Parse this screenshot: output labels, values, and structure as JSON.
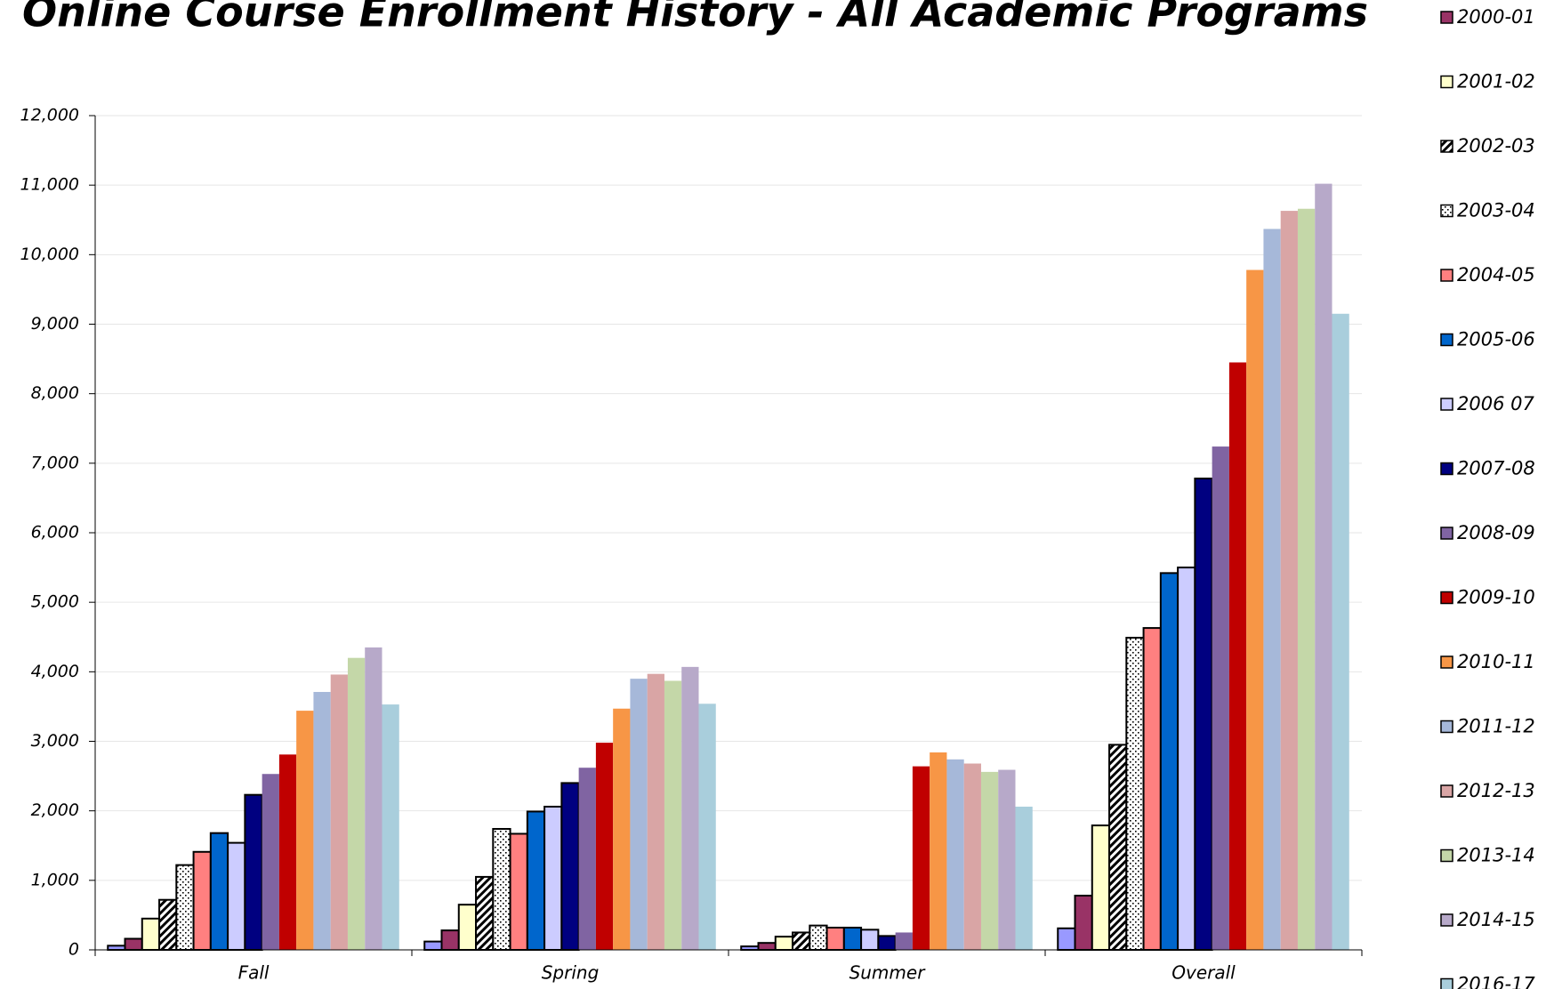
{
  "chart_data": {
    "type": "bar",
    "title": "Online Course Enrollment History - All Academic Programs",
    "categories": [
      "Fall",
      "Spring",
      "Summer",
      "Overall"
    ],
    "ylim": [
      0,
      12000
    ],
    "yticks": [
      0,
      {
        "value": 1000,
        "label": "1,000"
      },
      {
        "value": 2000,
        "label": "2,000"
      },
      {
        "value": 3000,
        "label": "3,000"
      },
      {
        "value": 4000,
        "label": "4,000"
      },
      {
        "value": 5000,
        "label": "5,000"
      },
      {
        "value": 6000,
        "label": "6,000"
      },
      {
        "value": 7000,
        "label": "7,000"
      },
      {
        "value": 8000,
        "label": "8,000"
      },
      {
        "value": 9000,
        "label": "9,000"
      },
      {
        "value": 10000,
        "label": "10,000"
      },
      {
        "value": 11000,
        "label": "11,000"
      },
      {
        "value": 12000,
        "label": "12,000"
      }
    ],
    "grid": true,
    "series": [
      {
        "name": null,
        "color": "#9999ff",
        "border": "#000000",
        "values": [
          60,
          120,
          50,
          310
        ]
      },
      {
        "name": "2000-01",
        "color": "#993366",
        "border": "#000000",
        "values": [
          160,
          280,
          100,
          780
        ]
      },
      {
        "name": "2001-02",
        "color": "#ffffcc",
        "border": "#000000",
        "values": [
          450,
          650,
          190,
          1790
        ]
      },
      {
        "name": "2002-03",
        "color": "#ffffff",
        "pattern": "hatch",
        "border": "#000000",
        "values": [
          720,
          1050,
          250,
          2950
        ]
      },
      {
        "name": "2003-04",
        "color": "#ffffff",
        "pattern": "dots",
        "border": "#000000",
        "values": [
          1220,
          1740,
          350,
          4490
        ]
      },
      {
        "name": "2004-05",
        "color": "#ff8080",
        "border": "#000000",
        "values": [
          1410,
          1670,
          320,
          4630
        ]
      },
      {
        "name": "2005-06",
        "color": "#0066cc",
        "border": "#000000",
        "values": [
          1680,
          1990,
          320,
          5420
        ]
      },
      {
        "name": "2006 07",
        "color": "#ccccff",
        "border": "#000000",
        "values": [
          1540,
          2060,
          290,
          5500
        ]
      },
      {
        "name": "2007-08",
        "color": "#000080",
        "border": "#000000",
        "values": [
          2230,
          2400,
          200,
          6780
        ]
      },
      {
        "name": "2008-09",
        "color": "#8064a2",
        "values": [
          2530,
          2620,
          250,
          7240
        ]
      },
      {
        "name": "2009-10",
        "color": "#c00000",
        "values": [
          2810,
          2980,
          2640,
          8450
        ]
      },
      {
        "name": "2010-11",
        "color": "#f79646",
        "values": [
          3440,
          3470,
          2840,
          9780
        ]
      },
      {
        "name": "2011-12",
        "color": "#a6b8d9",
        "values": [
          3710,
          3900,
          2740,
          10370
        ]
      },
      {
        "name": "2012-13",
        "color": "#d9a5a5",
        "values": [
          3960,
          3970,
          2680,
          10630
        ]
      },
      {
        "name": "2013-14",
        "color": "#c4d7a8",
        "values": [
          4200,
          3870,
          2560,
          10660
        ]
      },
      {
        "name": "2014-15",
        "color": "#b7a9c9",
        "values": [
          4350,
          4070,
          2590,
          11020
        ]
      },
      {
        "name": "2016-17",
        "color": "#a9cedc",
        "values": [
          3530,
          3540,
          2060,
          9150
        ]
      }
    ]
  }
}
